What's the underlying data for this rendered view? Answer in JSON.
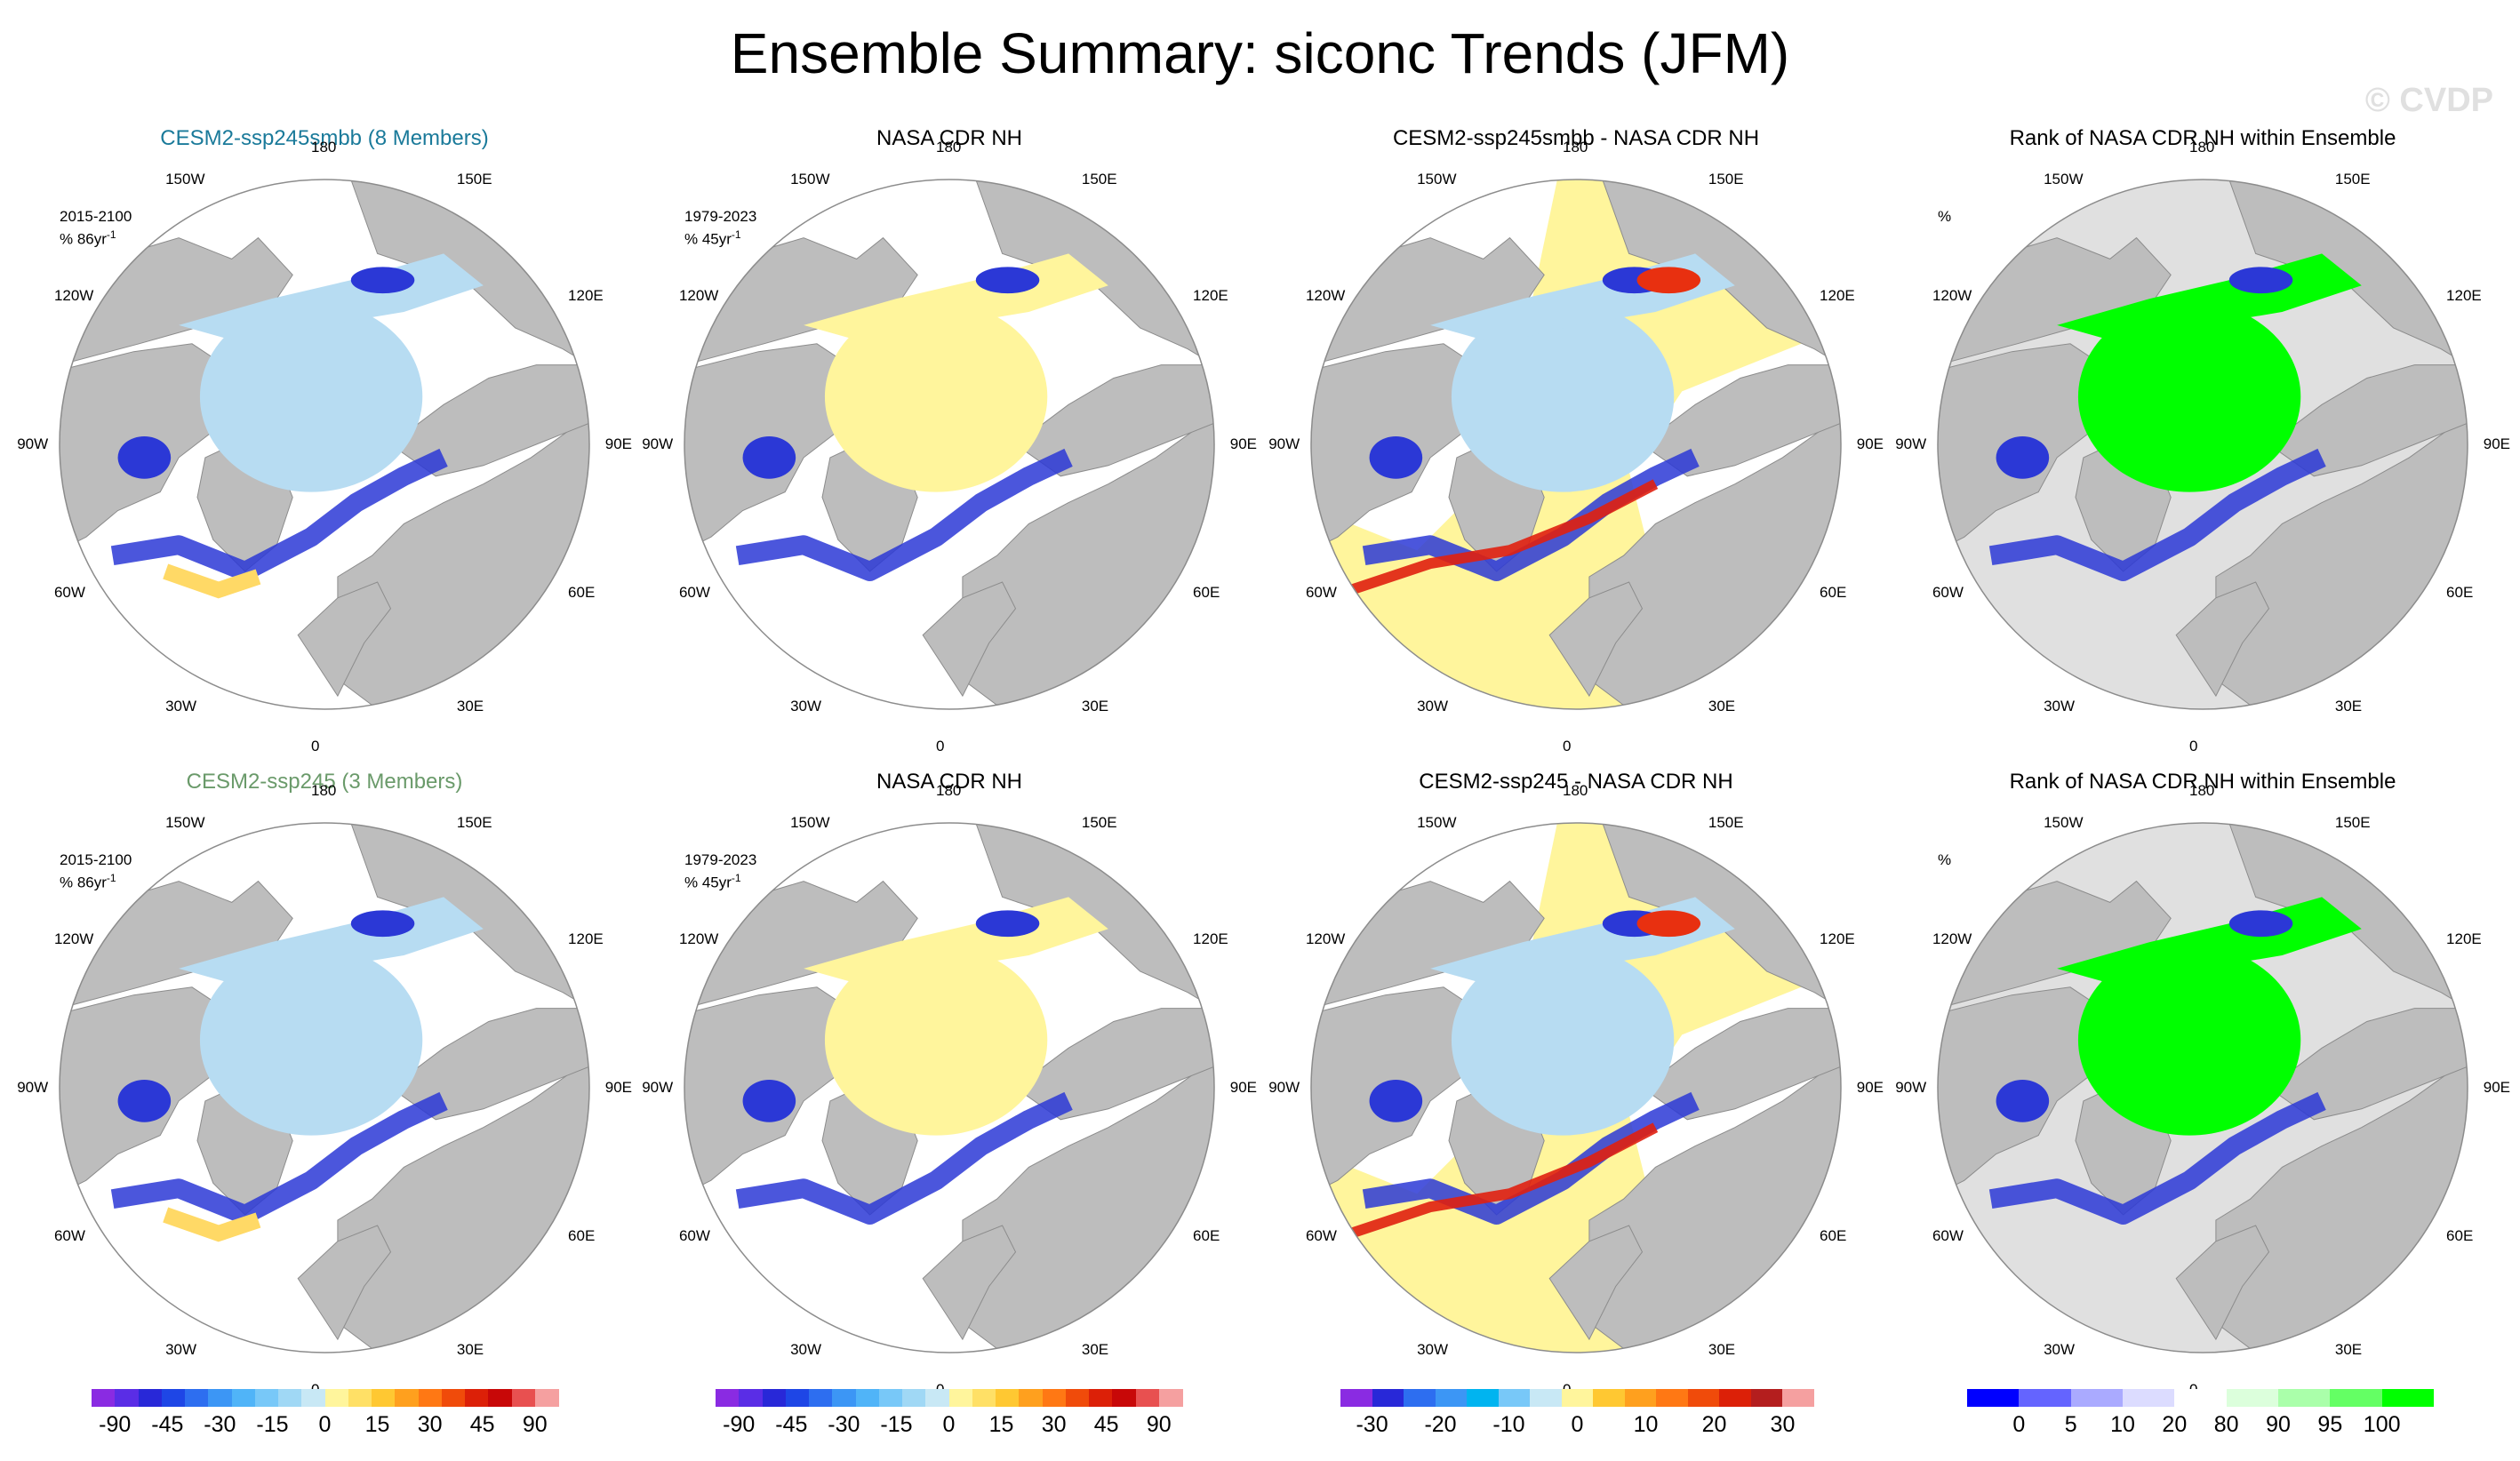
{
  "title": "Ensemble Summary: siconc Trends (JFM)",
  "watermark": "© CVDP",
  "colors": {
    "land": "#bdbdbd",
    "grey_ocean": "#e0e0e0",
    "light_blue": "#b7dcf2",
    "yellow": "#fff59c",
    "dark_blue": "#2b38d6",
    "green": "#00ff00",
    "title_cesm_smbb": "#1a7a9a",
    "title_cesm": "#6a9a6a"
  },
  "lon_labels": [
    "180",
    "150W",
    "150E",
    "120W",
    "120E",
    "90W",
    "90E",
    "60W",
    "60E",
    "30W",
    "30E",
    "0"
  ],
  "rows": [
    {
      "panels": [
        {
          "title": "CESM2-ssp245smbb (8 Members)",
          "annot_l1": "2015-2100",
          "annot_l2": "% 86yr",
          "sup": "-1",
          "type": "model",
          "icon": "polar-trend-map"
        },
        {
          "title": "NASA CDR NH",
          "annot_l1": "1979-2023",
          "annot_l2": "% 45yr",
          "sup": "-1",
          "type": "obs",
          "icon": "polar-trend-map"
        },
        {
          "title": "CESM2-ssp245smbb - NASA CDR NH",
          "annot_l1": "",
          "annot_l2": "",
          "sup": "",
          "type": "diff",
          "icon": "polar-difference-map"
        },
        {
          "title": "Rank of NASA CDR NH within Ensemble",
          "annot_l1": "%",
          "annot_l2": "",
          "sup": "",
          "type": "rank",
          "icon": "polar-rank-map"
        }
      ]
    },
    {
      "panels": [
        {
          "title": "CESM2-ssp245 (3 Members)",
          "annot_l1": "2015-2100",
          "annot_l2": "% 86yr",
          "sup": "-1",
          "type": "model",
          "icon": "polar-trend-map"
        },
        {
          "title": "NASA CDR NH",
          "annot_l1": "1979-2023",
          "annot_l2": "% 45yr",
          "sup": "-1",
          "type": "obs",
          "icon": "polar-trend-map"
        },
        {
          "title": "CESM2-ssp245 - NASA CDR NH",
          "annot_l1": "",
          "annot_l2": "",
          "sup": "",
          "type": "diff",
          "icon": "polar-difference-map"
        },
        {
          "title": "Rank of NASA CDR NH within Ensemble",
          "annot_l1": "%",
          "annot_l2": "",
          "sup": "",
          "type": "rank",
          "icon": "polar-rank-map"
        }
      ]
    }
  ],
  "colorbars": [
    {
      "name": "trend",
      "colors": [
        "#8a2be2",
        "#5a2de6",
        "#2828d8",
        "#1e46e6",
        "#2d6ef0",
        "#3c96f5",
        "#50b4f8",
        "#78c8f8",
        "#a0d8f5",
        "#c8e8f5",
        "#fff59c",
        "#ffe066",
        "#ffc832",
        "#ffa01e",
        "#ff7814",
        "#f04b0a",
        "#dc2008",
        "#c80808",
        "#e85050",
        "#f5a0a0"
      ],
      "ticks": [
        "-90",
        "-45",
        "-30",
        "-15",
        "0",
        "15",
        "30",
        "45",
        "90"
      ]
    },
    {
      "name": "trend",
      "colors": [
        "#8a2be2",
        "#5a2de6",
        "#2828d8",
        "#1e46e6",
        "#2d6ef0",
        "#3c96f5",
        "#50b4f8",
        "#78c8f8",
        "#a0d8f5",
        "#c8e8f5",
        "#fff59c",
        "#ffe066",
        "#ffc832",
        "#ffa01e",
        "#ff7814",
        "#f04b0a",
        "#dc2008",
        "#c80808",
        "#e85050",
        "#f5a0a0"
      ],
      "ticks": [
        "-90",
        "-45",
        "-30",
        "-15",
        "0",
        "15",
        "30",
        "45",
        "90"
      ]
    },
    {
      "name": "diff",
      "colors": [
        "#8a2be2",
        "#2828d8",
        "#2d6ef0",
        "#3c96f5",
        "#00b4f0",
        "#78c8f8",
        "#c8e8f5",
        "#fff59c",
        "#ffc832",
        "#ffa01e",
        "#ff7814",
        "#f04b0a",
        "#dc2008",
        "#b41e1e",
        "#f5a0a0"
      ],
      "ticks": [
        "-30",
        "-20",
        "-10",
        "0",
        "10",
        "20",
        "30"
      ]
    },
    {
      "name": "rank",
      "colors": [
        "#0000ff",
        "#6464ff",
        "#aaaaff",
        "#dcdcff",
        "#ffffff",
        "#dcffdc",
        "#aaffaa",
        "#64ff64",
        "#00ff00"
      ],
      "ticks": [
        "0",
        "5",
        "10",
        "20",
        "80",
        "90",
        "95",
        "100"
      ]
    }
  ]
}
